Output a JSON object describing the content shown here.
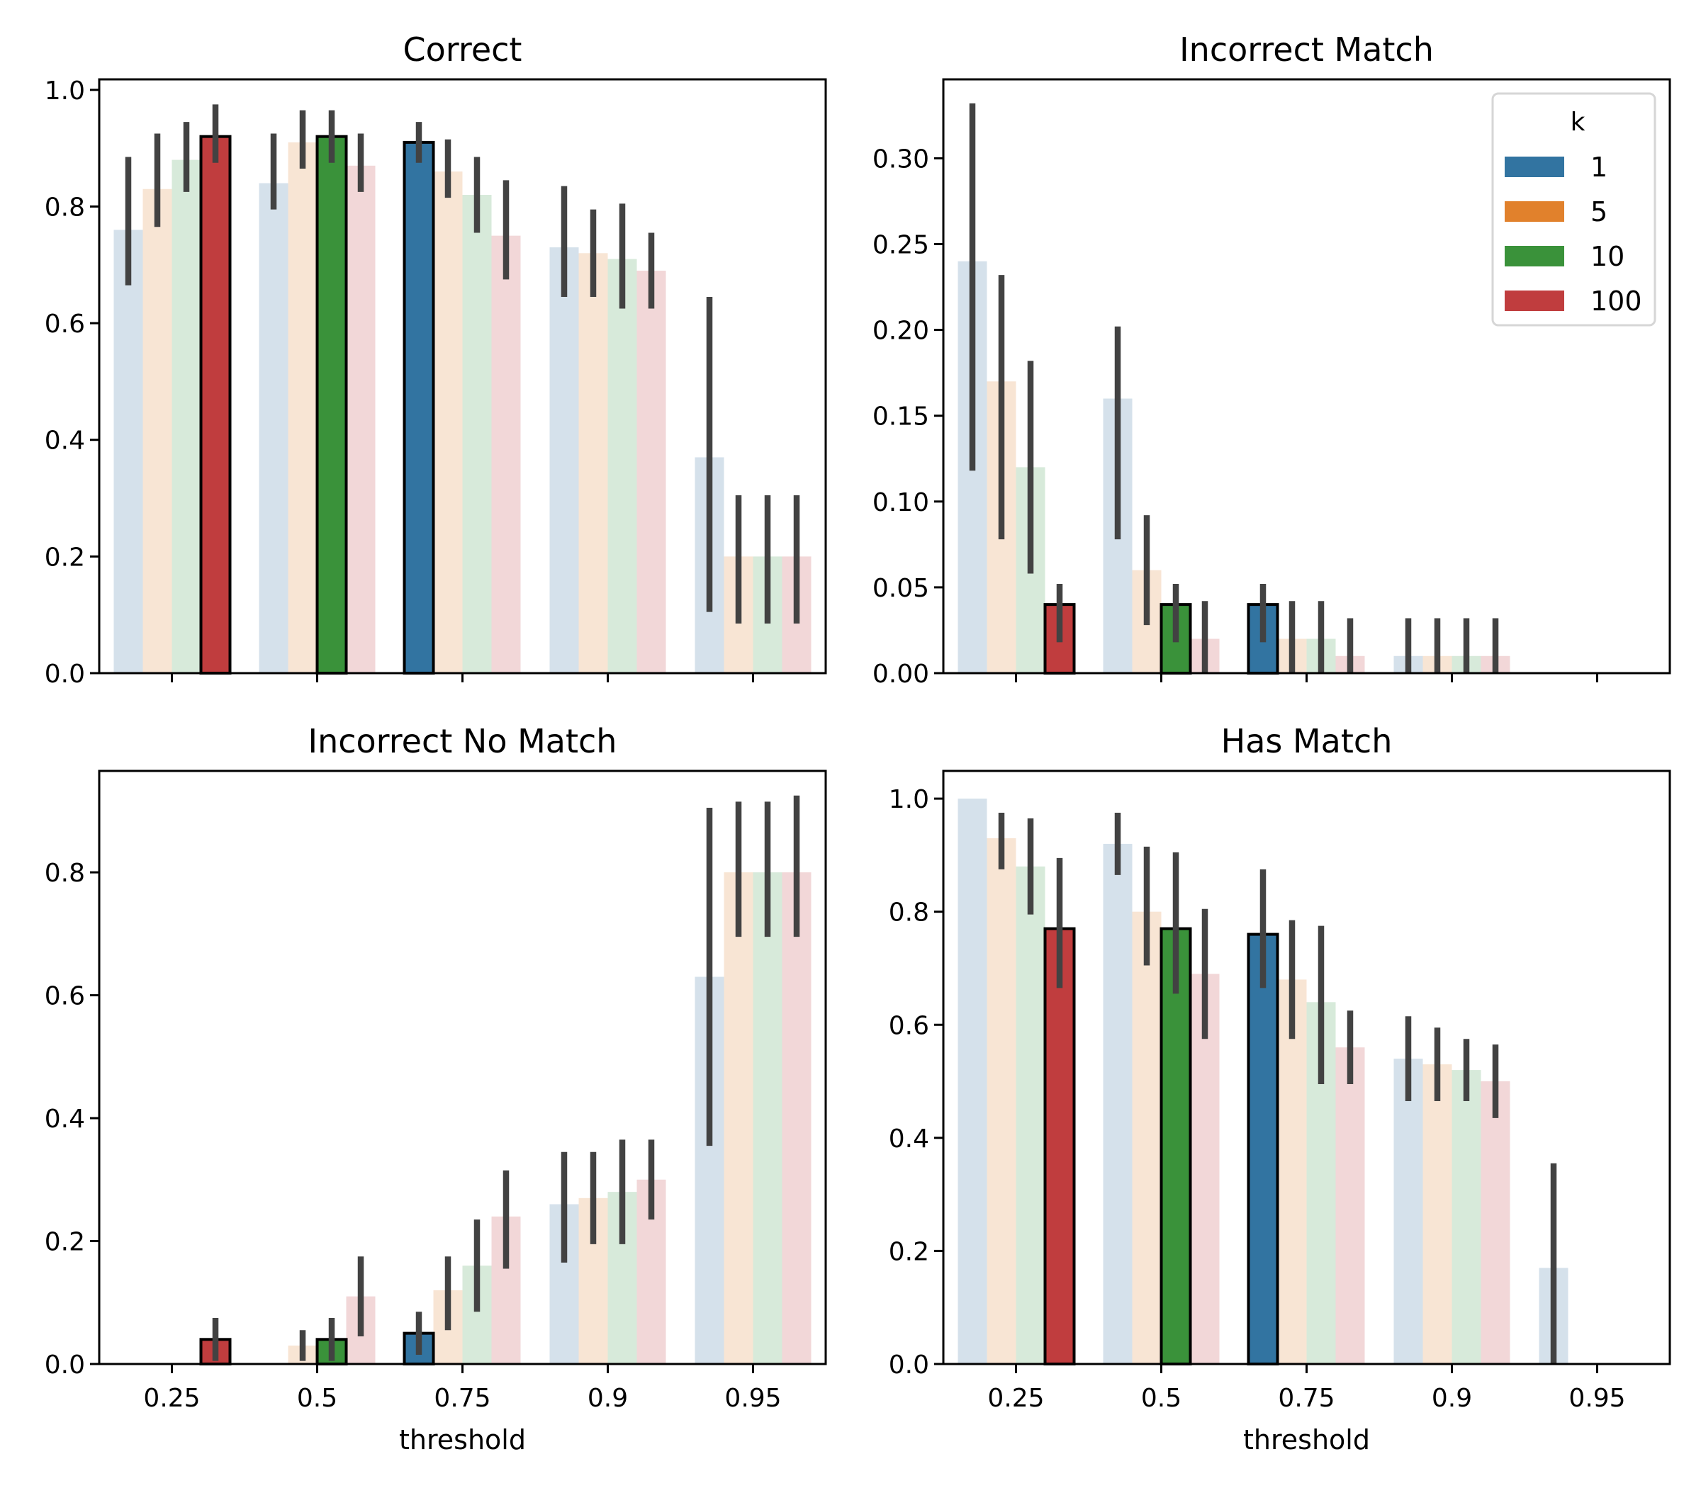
{
  "chart_data": {
    "type": "bar",
    "figure_layout": "2x2 grid of grouped bar charts with error bars",
    "categories": [
      "0.25",
      "0.5",
      "0.75",
      "0.9",
      "0.95"
    ],
    "hue": {
      "name": "k",
      "levels": [
        "1",
        "5",
        "10",
        "100"
      ],
      "colors": {
        "1": "#3274a1",
        "5": "#e1812c",
        "10": "#3a923a",
        "100": "#c03d3e"
      },
      "faded_colors": {
        "1": "#d5e1eb",
        "5": "#f8e5d4",
        "10": "#d7eada",
        "100": "#f2d7d8"
      }
    },
    "highlighted": [
      {
        "threshold": "0.25",
        "k": "100"
      },
      {
        "threshold": "0.5",
        "k": "10"
      },
      {
        "threshold": "0.75",
        "k": "1"
      }
    ],
    "error_bar_color": "#424242",
    "legend": {
      "title": "k",
      "entries": [
        "1",
        "5",
        "10",
        "100"
      ],
      "location": "upper right of 'Incorrect Match' panel"
    },
    "panels": [
      {
        "title": "Correct",
        "xlabel": "",
        "ylabel": "",
        "show_x_ticklabels": false,
        "ylim": [
          0,
          1.018
        ],
        "yticks": [
          "0.0",
          "0.2",
          "0.4",
          "0.6",
          "0.8",
          "1.0"
        ],
        "ytick_values": [
          0,
          0.2,
          0.4,
          0.6,
          0.8,
          1.0
        ],
        "series": [
          {
            "name": "1",
            "values": [
              0.76,
              0.84,
              0.91,
              0.73,
              0.37
            ],
            "ci_low": [
              0.665,
              0.795,
              0.875,
              0.645,
              0.105
            ],
            "ci_high": [
              0.885,
              0.925,
              0.945,
              0.835,
              0.645
            ]
          },
          {
            "name": "5",
            "values": [
              0.83,
              0.91,
              0.86,
              0.72,
              0.2
            ],
            "ci_low": [
              0.765,
              0.865,
              0.815,
              0.645,
              0.085
            ],
            "ci_high": [
              0.925,
              0.965,
              0.915,
              0.795,
              0.305
            ]
          },
          {
            "name": "10",
            "values": [
              0.88,
              0.92,
              0.82,
              0.71,
              0.2
            ],
            "ci_low": [
              0.825,
              0.875,
              0.755,
              0.625,
              0.085
            ],
            "ci_high": [
              0.945,
              0.965,
              0.885,
              0.805,
              0.305
            ]
          },
          {
            "name": "100",
            "values": [
              0.92,
              0.87,
              0.75,
              0.69,
              0.2
            ],
            "ci_low": [
              0.875,
              0.825,
              0.675,
              0.625,
              0.085
            ],
            "ci_high": [
              0.975,
              0.925,
              0.845,
              0.755,
              0.305
            ]
          }
        ]
      },
      {
        "title": "Incorrect Match",
        "xlabel": "",
        "ylabel": "",
        "show_x_ticklabels": false,
        "ylim": [
          0,
          0.346
        ],
        "yticks": [
          "0.00",
          "0.05",
          "0.10",
          "0.15",
          "0.20",
          "0.25",
          "0.30"
        ],
        "ytick_values": [
          0,
          0.05,
          0.1,
          0.15,
          0.2,
          0.25,
          0.3
        ],
        "series": [
          {
            "name": "1",
            "values": [
              0.24,
              0.16,
              0.04,
              0.01,
              null
            ],
            "ci_low": [
              0.118,
              0.078,
              0.018,
              0.0,
              null
            ],
            "ci_high": [
              0.332,
              0.202,
              0.052,
              0.032,
              null
            ]
          },
          {
            "name": "5",
            "values": [
              0.17,
              0.06,
              0.02,
              0.01,
              null
            ],
            "ci_low": [
              0.078,
              0.028,
              0.0,
              0.0,
              null
            ],
            "ci_high": [
              0.232,
              0.092,
              0.042,
              0.032,
              null
            ]
          },
          {
            "name": "10",
            "values": [
              0.12,
              0.04,
              0.02,
              0.01,
              null
            ],
            "ci_low": [
              0.058,
              0.018,
              0.0,
              0.0,
              null
            ],
            "ci_high": [
              0.182,
              0.052,
              0.042,
              0.032,
              null
            ]
          },
          {
            "name": "100",
            "values": [
              0.04,
              0.02,
              0.01,
              0.01,
              null
            ],
            "ci_low": [
              0.018,
              0.0,
              0.0,
              0.0,
              null
            ],
            "ci_high": [
              0.052,
              0.042,
              0.032,
              0.032,
              null
            ]
          }
        ]
      },
      {
        "title": "Incorrect No Match",
        "xlabel": "threshold",
        "ylabel": "",
        "show_x_ticklabels": true,
        "ylim": [
          0,
          0.965
        ],
        "yticks": [
          "0.0",
          "0.2",
          "0.4",
          "0.6",
          "0.8"
        ],
        "ytick_values": [
          0,
          0.2,
          0.4,
          0.6,
          0.8
        ],
        "series": [
          {
            "name": "1",
            "values": [
              0.0,
              0.0,
              0.05,
              0.26,
              0.63
            ],
            "ci_low": [
              null,
              null,
              0.015,
              0.165,
              0.355
            ],
            "ci_high": [
              null,
              null,
              0.085,
              0.345,
              0.905
            ]
          },
          {
            "name": "5",
            "values": [
              0.0,
              0.03,
              0.12,
              0.27,
              0.8
            ],
            "ci_low": [
              null,
              0.005,
              0.055,
              0.195,
              0.695
            ],
            "ci_high": [
              null,
              0.055,
              0.175,
              0.345,
              0.915
            ]
          },
          {
            "name": "10",
            "values": [
              0.0,
              0.04,
              0.16,
              0.28,
              0.8
            ],
            "ci_low": [
              null,
              0.005,
              0.085,
              0.195,
              0.695
            ],
            "ci_high": [
              null,
              0.075,
              0.235,
              0.365,
              0.915
            ]
          },
          {
            "name": "100",
            "values": [
              0.04,
              0.11,
              0.24,
              0.3,
              0.8
            ],
            "ci_low": [
              0.005,
              0.045,
              0.155,
              0.235,
              0.695
            ],
            "ci_high": [
              0.075,
              0.175,
              0.315,
              0.365,
              0.925
            ]
          }
        ]
      },
      {
        "title": "Has Match",
        "xlabel": "threshold",
        "ylabel": "",
        "show_x_ticklabels": true,
        "ylim": [
          0,
          1.049
        ],
        "yticks": [
          "0.0",
          "0.2",
          "0.4",
          "0.6",
          "0.8",
          "1.0"
        ],
        "ytick_values": [
          0,
          0.2,
          0.4,
          0.6,
          0.8,
          1.0
        ],
        "series": [
          {
            "name": "1",
            "values": [
              1.0,
              0.92,
              0.76,
              0.54,
              0.17
            ],
            "ci_low": [
              null,
              0.865,
              0.665,
              0.465,
              0.0
            ],
            "ci_high": [
              null,
              0.975,
              0.875,
              0.615,
              0.355
            ]
          },
          {
            "name": "5",
            "values": [
              0.93,
              0.8,
              0.68,
              0.53,
              0.0
            ],
            "ci_low": [
              0.875,
              0.705,
              0.575,
              0.465,
              null
            ],
            "ci_high": [
              0.975,
              0.915,
              0.785,
              0.595,
              null
            ]
          },
          {
            "name": "10",
            "values": [
              0.88,
              0.77,
              0.64,
              0.52,
              0.0
            ],
            "ci_low": [
              0.795,
              0.655,
              0.495,
              0.465,
              null
            ],
            "ci_high": [
              0.965,
              0.905,
              0.775,
              0.575,
              null
            ]
          },
          {
            "name": "100",
            "values": [
              0.77,
              0.69,
              0.56,
              0.5,
              0.0
            ],
            "ci_low": [
              0.665,
              0.575,
              0.495,
              0.435,
              null
            ],
            "ci_high": [
              0.895,
              0.805,
              0.625,
              0.565,
              null
            ]
          }
        ]
      }
    ]
  }
}
